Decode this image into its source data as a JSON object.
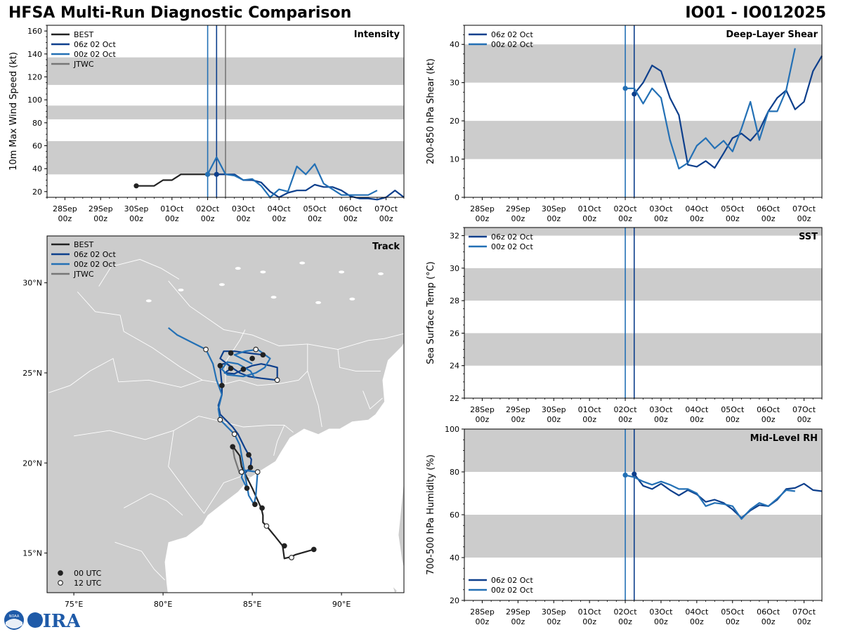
{
  "header": {
    "title_left": "HFSA Multi-Run Diagnostic Comparison",
    "title_right": "IO01 - IO012025"
  },
  "colors": {
    "best": "#222222",
    "r06": "#0d3f8c",
    "r00": "#2370b5",
    "jtwc": "#777777",
    "band": "#cccccc",
    "land": "#cccccc",
    "border": "#ffffff"
  },
  "time_ticks": [
    "28Sep",
    "29Sep",
    "30Sep",
    "01Oct",
    "02Oct",
    "03Oct",
    "04Oct",
    "05Oct",
    "06Oct",
    "07Oct"
  ],
  "time_sub": "00z",
  "logo": {
    "text": "CIRA",
    "badge": "NOAA"
  },
  "chart_data": [
    {
      "id": "intensity",
      "type": "line",
      "title": "Intensity",
      "ylabel": "10m Max Wind Speed (kt)",
      "xlim": [
        -0.5,
        9.5
      ],
      "ylim": [
        15,
        165
      ],
      "yticks": [
        20,
        40,
        60,
        80,
        100,
        120,
        140,
        160
      ],
      "bands": [
        [
          35,
          64
        ],
        [
          83,
          95
        ],
        [
          113,
          137
        ]
      ],
      "vlines": [
        {
          "x": 4.0,
          "c": "r00"
        },
        {
          "x": 4.25,
          "c": "r06"
        },
        {
          "x": 4.5,
          "c": "jtwc"
        }
      ],
      "legend": [
        {
          "label": "BEST",
          "c": "best"
        },
        {
          "label": "06z 02 Oct",
          "c": "r06"
        },
        {
          "label": "00z 02 Oct",
          "c": "r00"
        },
        {
          "label": "JTWC",
          "c": "jtwc"
        }
      ],
      "series": [
        {
          "name": "BEST",
          "c": "best",
          "x": [
            2.0,
            2.25,
            2.5,
            2.75,
            3.0,
            3.25,
            3.5,
            3.75,
            4.0,
            4.25,
            4.5
          ],
          "y": [
            25,
            25,
            25,
            30,
            30,
            35,
            35,
            35,
            35,
            35,
            35
          ]
        },
        {
          "name": "JTWC",
          "c": "jtwc",
          "x": [
            4.0,
            4.25,
            4.5
          ],
          "y": [
            35,
            35,
            35
          ]
        },
        {
          "name": "06z 02 Oct",
          "c": "r06",
          "x": [
            4.25,
            4.5,
            4.75,
            5.0,
            5.25,
            5.5,
            5.75,
            6.0,
            6.25,
            6.5,
            6.75,
            7.0,
            7.25,
            7.5,
            7.75,
            8.0,
            8.25,
            8.5,
            8.75,
            9.0,
            9.25,
            9.5
          ],
          "y": [
            35,
            35,
            35,
            30,
            30,
            28,
            20,
            15,
            19,
            21,
            21,
            26,
            24,
            24,
            21,
            16,
            14,
            14,
            13,
            15,
            21,
            15
          ]
        },
        {
          "name": "00z 02 Oct",
          "c": "r00",
          "x": [
            4.0,
            4.25,
            4.5,
            4.75,
            5.0,
            5.25,
            5.5,
            5.75,
            6.0,
            6.25,
            6.5,
            6.75,
            7.0,
            7.25,
            7.5,
            7.75,
            8.0,
            8.25,
            8.5,
            8.75
          ],
          "y": [
            35,
            50,
            35,
            34,
            30,
            31,
            25,
            15,
            22,
            20,
            42,
            35,
            44,
            27,
            22,
            17,
            17,
            17,
            17,
            21
          ]
        }
      ]
    },
    {
      "id": "shear",
      "type": "line",
      "title": "Deep-Layer Shear",
      "ylabel": "200-850 hPa Shear (kt)",
      "xlim": [
        -0.5,
        9.5
      ],
      "ylim": [
        0,
        45
      ],
      "yticks": [
        0,
        10,
        20,
        30,
        40
      ],
      "bands": [
        [
          10,
          20
        ],
        [
          30,
          40
        ]
      ],
      "vlines": [
        {
          "x": 4.0,
          "c": "r00"
        },
        {
          "x": 4.25,
          "c": "r06"
        }
      ],
      "legend": [
        {
          "label": "06z 02 Oct",
          "c": "r06"
        },
        {
          "label": "00z 02 Oct",
          "c": "r00"
        }
      ],
      "series": [
        {
          "name": "06z 02 Oct",
          "c": "r06",
          "x": [
            4.25,
            4.5,
            4.75,
            5.0,
            5.25,
            5.5,
            5.75,
            6.0,
            6.25,
            6.5,
            6.75,
            7.0,
            7.25,
            7.5,
            7.75,
            8.0,
            8.25,
            8.5,
            8.75,
            9.0,
            9.25,
            9.5
          ],
          "y": [
            27,
            30,
            34.5,
            33,
            26,
            21.5,
            8.5,
            8,
            9.5,
            7.7,
            11.5,
            15.5,
            16.7,
            14.8,
            17.5,
            22.5,
            26,
            28,
            23,
            25,
            33,
            37
          ]
        },
        {
          "name": "00z 02 Oct",
          "c": "r00",
          "x": [
            4.0,
            4.25,
            4.5,
            4.75,
            5.0,
            5.25,
            5.5,
            5.75,
            6.0,
            6.25,
            6.5,
            6.75,
            7.0,
            7.25,
            7.5,
            7.75,
            8.0,
            8.25,
            8.5,
            8.75
          ],
          "y": [
            28.5,
            28.5,
            24.5,
            28.5,
            26,
            15,
            7.5,
            9,
            13.5,
            15.5,
            12.8,
            14.8,
            12,
            18,
            25,
            15,
            22.5,
            22.5,
            28,
            39
          ]
        }
      ]
    },
    {
      "id": "sst",
      "type": "line",
      "title": "SST",
      "ylabel": "Sea Surface Temp (°C)",
      "xlim": [
        -0.5,
        9.5
      ],
      "ylim": [
        22,
        32.5
      ],
      "yticks": [
        22,
        24,
        26,
        28,
        30,
        32
      ],
      "bands": [
        [
          24,
          26
        ],
        [
          28,
          30
        ],
        [
          32,
          32.5
        ]
      ],
      "vlines": [
        {
          "x": 4.0,
          "c": "r00"
        },
        {
          "x": 4.25,
          "c": "r06"
        }
      ],
      "legend": [
        {
          "label": "06z 02 Oct",
          "c": "r06"
        },
        {
          "label": "00z 02 Oct",
          "c": "r00"
        }
      ],
      "series": []
    },
    {
      "id": "rh",
      "type": "line",
      "title": "Mid-Level RH",
      "ylabel": "700-500 hPa Humidity (%)",
      "xlim": [
        -0.5,
        9.5
      ],
      "ylim": [
        20,
        100
      ],
      "yticks": [
        20,
        40,
        60,
        80,
        100
      ],
      "bands": [
        [
          40,
          60
        ],
        [
          80,
          100
        ]
      ],
      "vlines": [
        {
          "x": 4.0,
          "c": "r00"
        },
        {
          "x": 4.25,
          "c": "r06"
        }
      ],
      "legend": [
        {
          "label": "06z 02 Oct",
          "c": "r06"
        },
        {
          "label": "00z 02 Oct",
          "c": "r00"
        }
      ],
      "series": [
        {
          "name": "06z 02 Oct",
          "c": "r06",
          "x": [
            4.25,
            4.5,
            4.75,
            5.0,
            5.25,
            5.5,
            5.75,
            6.0,
            6.25,
            6.5,
            6.75,
            7.0,
            7.25,
            7.5,
            7.75,
            8.0,
            8.25,
            8.5,
            8.75,
            9.0,
            9.25,
            9.5
          ],
          "y": [
            79,
            73.5,
            72,
            74.5,
            71.5,
            69,
            71.5,
            69.5,
            66,
            67,
            65.5,
            62.5,
            58.5,
            62,
            64.5,
            64,
            67,
            72,
            72.5,
            74.5,
            71.5,
            71
          ]
        },
        {
          "name": "00z 02 Oct",
          "c": "r00",
          "x": [
            4.0,
            4.25,
            4.5,
            4.75,
            5.0,
            5.25,
            5.5,
            5.75,
            6.0,
            6.25,
            6.5,
            6.75,
            7.0,
            7.25,
            7.5,
            7.75,
            8.0,
            8.25,
            8.5,
            8.75
          ],
          "y": [
            78.5,
            77.5,
            75.5,
            74,
            75.5,
            74,
            72,
            72,
            70,
            64,
            65.5,
            65,
            64,
            58,
            62.5,
            65.5,
            64,
            67.5,
            71.5,
            71
          ]
        }
      ]
    },
    {
      "id": "track",
      "type": "scatter",
      "title": "Track",
      "xlim": [
        73.5,
        93.5
      ],
      "ylim": [
        12.8,
        32.6
      ],
      "xticks": [
        {
          "v": 75,
          "label": "75°E"
        },
        {
          "v": 80,
          "label": "80°E"
        },
        {
          "v": 85,
          "label": "85°E"
        },
        {
          "v": 90,
          "label": "90°E"
        }
      ],
      "yticks": [
        {
          "v": 15,
          "label": "15°N"
        },
        {
          "v": 20,
          "label": "20°N"
        },
        {
          "v": 25,
          "label": "25°N"
        },
        {
          "v": 30,
          "label": "30°N"
        }
      ],
      "legend": [
        {
          "label": "BEST",
          "c": "best"
        },
        {
          "label": "06z 02 Oct",
          "c": "r06"
        },
        {
          "label": "00z 02 Oct",
          "c": "r00"
        },
        {
          "label": "JTWC",
          "c": "jtwc"
        }
      ],
      "marker_legend": [
        {
          "label": "00 UTC",
          "fill": "#222222"
        },
        {
          "label": "12 UTC",
          "fill": "#ffffff"
        }
      ],
      "tracks": [
        {
          "name": "BEST",
          "c": "best",
          "lon": [
            88.45,
            87.4,
            87.2,
            86.8,
            86.7,
            86.3,
            85.8,
            85.6,
            85.6,
            85.55,
            85.5,
            85.0,
            84.6,
            84.4,
            84.3,
            84.0,
            83.9
          ],
          "lat": [
            15.2,
            14.9,
            14.8,
            14.7,
            15.4,
            15.9,
            16.5,
            16.7,
            17.1,
            17.3,
            17.5,
            18.6,
            19.4,
            19.8,
            20.4,
            20.8,
            20.9
          ],
          "dots": [
            {
              "lon": 88.45,
              "lat": 15.2,
              "f": "k"
            },
            {
              "lon": 87.2,
              "lat": 14.75,
              "f": "w"
            },
            {
              "lon": 86.8,
              "lat": 15.4,
              "f": "k"
            },
            {
              "lon": 85.8,
              "lat": 16.5,
              "f": "w"
            },
            {
              "lon": 85.55,
              "lat": 17.5,
              "f": "k"
            },
            {
              "lon": 84.4,
              "lat": 19.5,
              "f": "w"
            },
            {
              "lon": 83.9,
              "lat": 20.9,
              "f": "k"
            }
          ]
        },
        {
          "name": "JTWC",
          "c": "jtwc",
          "lon": [
            84.3,
            84.0,
            83.9
          ],
          "lat": [
            19.4,
            20.3,
            20.9
          ],
          "dots": []
        },
        {
          "name": "06z 02 Oct",
          "c": "r06",
          "lon": [
            84.55,
            84.9,
            84.95,
            84.8,
            84.6,
            84.2,
            83.9,
            83.5,
            83.2,
            83.1,
            83.3,
            83.3,
            83.2,
            83.35,
            83.6,
            83.8,
            83.75,
            83.45,
            84.0,
            84.5,
            85.0,
            85.5,
            86.0,
            86.4,
            86.4,
            85.5,
            84.8,
            84.3,
            84.0,
            83.6,
            83.2,
            83.4,
            84.0,
            84.8,
            85.6
          ],
          "lat": [
            19.4,
            19.75,
            20.2,
            20.45,
            20.8,
            21.6,
            22.0,
            22.4,
            22.7,
            23.2,
            23.8,
            24.3,
            25.3,
            25.5,
            25.5,
            25.3,
            25.2,
            25.0,
            24.95,
            25.2,
            25.4,
            25.5,
            25.4,
            25.3,
            24.6,
            24.7,
            24.8,
            25.0,
            25.2,
            25.5,
            25.8,
            26.2,
            26.2,
            26.1,
            26.0
          ],
          "dots": [
            {
              "lon": 84.9,
              "lat": 19.75,
              "f": "k"
            },
            {
              "lon": 84.8,
              "lat": 20.45,
              "f": "k"
            },
            {
              "lon": 83.2,
              "lat": 22.4,
              "f": "w"
            },
            {
              "lon": 83.3,
              "lat": 24.3,
              "f": "k"
            },
            {
              "lon": 83.8,
              "lat": 25.25,
              "f": "k"
            },
            {
              "lon": 84.5,
              "lat": 25.2,
              "f": "k"
            },
            {
              "lon": 86.4,
              "lat": 24.6,
              "f": "w"
            },
            {
              "lon": 85.6,
              "lat": 26.0,
              "f": "k"
            },
            {
              "lon": 85.0,
              "lat": 25.8,
              "f": "k"
            },
            {
              "lon": 83.8,
              "lat": 26.1,
              "f": "k"
            },
            {
              "lon": 83.2,
              "lat": 25.4,
              "f": "k"
            }
          ]
        },
        {
          "name": "00z 02 Oct",
          "c": "r00",
          "lon": [
            84.7,
            84.4,
            84.5,
            85.3,
            85.2,
            85.1,
            84.8,
            84.3,
            84.0,
            83.6,
            83.2,
            83.1,
            83.3,
            83.0,
            82.8,
            82.4,
            81.6,
            80.8,
            80.3
          ],
          "lat": [
            18.6,
            19.2,
            19.6,
            19.5,
            18.2,
            17.7,
            18.2,
            21.0,
            21.6,
            22.0,
            22.4,
            23.0,
            23.8,
            24.6,
            25.5,
            26.3,
            26.7,
            27.1,
            27.5
          ],
          "dots": [
            {
              "lon": 84.7,
              "lat": 18.6,
              "f": "k"
            },
            {
              "lon": 85.3,
              "lat": 19.5,
              "f": "w"
            },
            {
              "lon": 85.15,
              "lat": 17.7,
              "f": "k"
            },
            {
              "lon": 84.0,
              "lat": 21.6,
              "f": "w"
            },
            {
              "lon": 83.2,
              "lat": 22.4,
              "f": "w"
            },
            {
              "lon": 82.4,
              "lat": 26.3,
              "f": "w"
            }
          ]
        },
        {
          "name": "00z 02 Oct loop",
          "c": "r00",
          "lon": [
            85.15,
            84.9,
            84.2,
            83.6,
            83.3,
            83.6,
            84.5,
            85.2,
            85.7,
            86.0,
            85.3,
            84.6,
            84.0,
            85.0
          ],
          "lat": [
            24.7,
            25.1,
            25.5,
            25.6,
            25.2,
            24.9,
            24.8,
            25.0,
            25.3,
            25.8,
            26.3,
            26.2,
            26.0,
            25.5
          ],
          "dots": [
            {
              "lon": 85.2,
              "lat": 26.3,
              "f": "w"
            }
          ]
        }
      ]
    }
  ]
}
